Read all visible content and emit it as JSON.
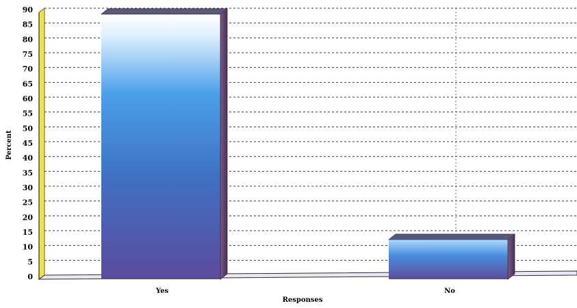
{
  "chart_data": {
    "type": "bar",
    "categories": [
      "Yes",
      "No"
    ],
    "values": [
      88,
      12
    ],
    "title": "",
    "xlabel": "Responses",
    "ylabel": "Percent",
    "ylim": [
      0,
      90
    ],
    "yticks": [
      "0",
      "5",
      "10",
      "15",
      "20",
      "25",
      "30",
      "35",
      "40",
      "45",
      "50",
      "55",
      "60",
      "65",
      "70",
      "75",
      "80",
      "85",
      "90"
    ],
    "grid": true,
    "legend": "none",
    "style": "3d",
    "colors": {
      "bar_top": "#e8f4ff",
      "bar_mid": "#4a96e0",
      "bar_bottom": "#5a4aa0",
      "bar_side": "#5a3a68",
      "bar_cap": "#585878",
      "wall_edge": "#f2e24a",
      "axis": "#2a2a3a"
    }
  }
}
